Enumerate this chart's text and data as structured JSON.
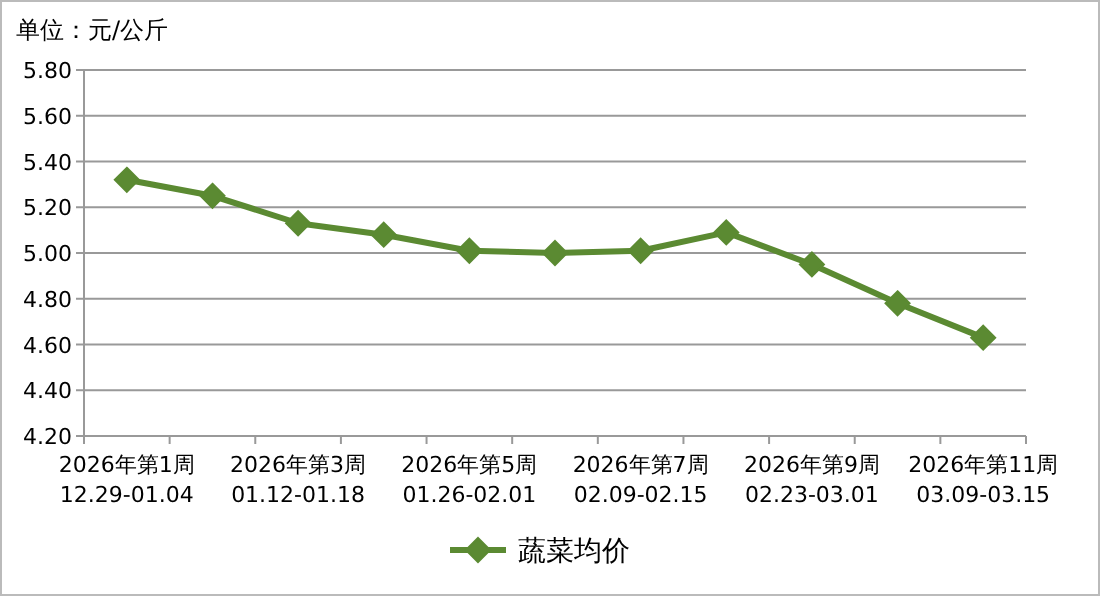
{
  "chart_data": {
    "type": "line",
    "ylabel": "单位：元/公斤",
    "categories": [
      "2026年第1周\n12.29-01.04",
      null,
      "2026年第3周\n01.12-01.18",
      null,
      "2026年第5周\n01.26-02.01",
      null,
      "2026年第7周\n02.09-02.15",
      null,
      "2026年第9周\n02.23-03.01",
      null,
      "2026年第11周\n03.09-03.15"
    ],
    "series": [
      {
        "name": "蔬菜均价",
        "color": "#5b8a32",
        "values": [
          5.32,
          5.25,
          5.13,
          5.08,
          5.01,
          5.0,
          5.01,
          5.09,
          4.95,
          4.78,
          4.63
        ]
      }
    ],
    "ylim": [
      4.2,
      5.8
    ],
    "yticks": [
      {
        "value": 4.2,
        "label": "4.20"
      },
      {
        "value": 4.4,
        "label": "4.40"
      },
      {
        "value": 4.6,
        "label": "4.60"
      },
      {
        "value": 4.8,
        "label": "4.80"
      },
      {
        "value": 5.0,
        "label": "5.00"
      },
      {
        "value": 5.2,
        "label": "5.20"
      },
      {
        "value": 5.4,
        "label": "5.40"
      },
      {
        "value": 5.6,
        "label": "5.60"
      },
      {
        "value": 5.8,
        "label": "5.80"
      }
    ],
    "grid": "y",
    "legend": "bottom",
    "marker": "diamond",
    "line_style": "solid"
  }
}
